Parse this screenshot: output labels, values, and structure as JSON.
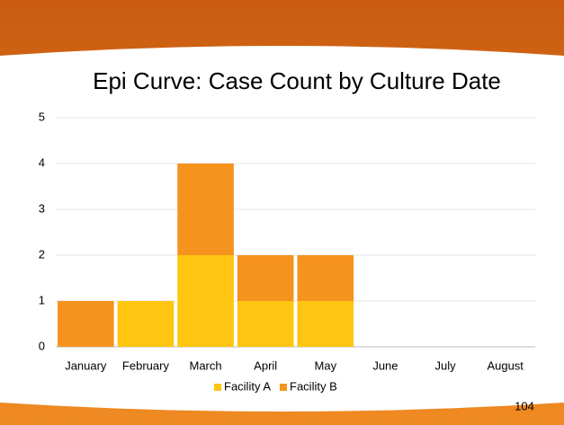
{
  "chart_data": {
    "type": "stacked_bar",
    "title": "Epi Curve: Case Count by Culture Date",
    "categories": [
      "January",
      "February",
      "March",
      "April",
      "May",
      "June",
      "July",
      "August"
    ],
    "series": [
      {
        "name": "Facility A",
        "color": "#ffc511",
        "values": [
          0,
          1,
          2,
          1,
          1,
          0,
          0,
          0
        ]
      },
      {
        "name": "Facility B",
        "color": "#f5931e",
        "values": [
          1,
          0,
          2,
          1,
          1,
          0,
          0,
          0
        ]
      }
    ],
    "ylim": [
      0,
      5
    ],
    "yticks": [
      0,
      1,
      2,
      3,
      4,
      5
    ],
    "grid": true,
    "legend": "bottom"
  },
  "page_number": "104"
}
